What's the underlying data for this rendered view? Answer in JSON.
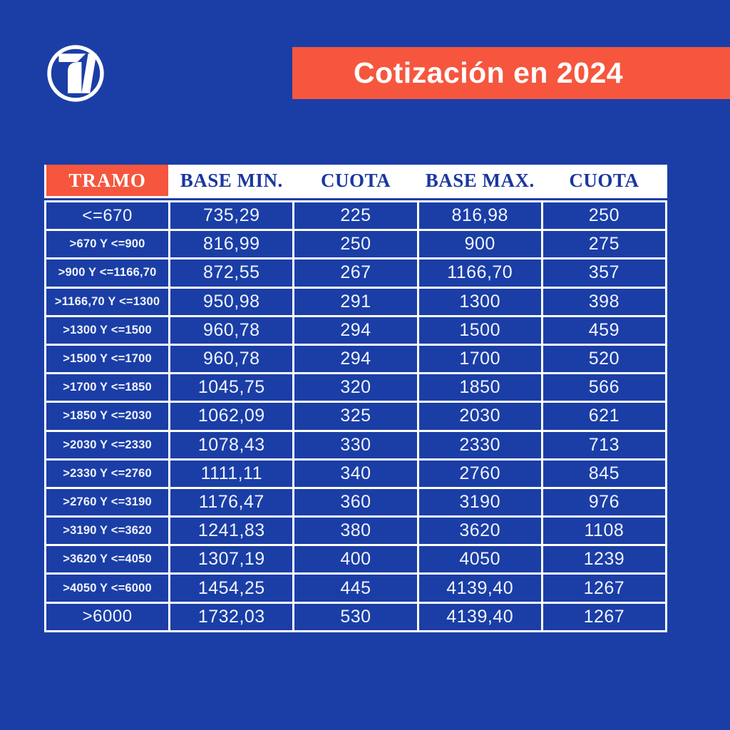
{
  "colors": {
    "background": "#1B3EA6",
    "accent": "#F6563E",
    "header_text": "#19379F",
    "cell_text": "#F0F4FF"
  },
  "icons": {
    "logo": "circle-seven-logo-icon"
  },
  "banner": {
    "title": "Cotización en 2024"
  },
  "chart_data": {
    "type": "table",
    "title": "Cotización en 2024",
    "columns": [
      "TRAMO",
      "BASE MIN.",
      "CUOTA",
      "BASE MAX.",
      "CUOTA"
    ],
    "rows": [
      [
        "<=670",
        "735,29",
        "225",
        "816,98",
        "250"
      ],
      [
        ">670 Y <=900",
        "816,99",
        "250",
        "900",
        "275"
      ],
      [
        ">900 Y <=1166,70",
        "872,55",
        "267",
        "1166,70",
        "357"
      ],
      [
        ">1166,70 Y <=1300",
        "950,98",
        "291",
        "1300",
        "398"
      ],
      [
        ">1300 Y <=1500",
        "960,78",
        "294",
        "1500",
        "459"
      ],
      [
        ">1500 Y <=1700",
        "960,78",
        "294",
        "1700",
        "520"
      ],
      [
        ">1700 Y <=1850",
        "1045,75",
        "320",
        "1850",
        "566"
      ],
      [
        ">1850 Y <=2030",
        "1062,09",
        "325",
        "2030",
        "621"
      ],
      [
        ">2030 Y <=2330",
        "1078,43",
        "330",
        "2330",
        "713"
      ],
      [
        ">2330 Y <=2760",
        "1111,11",
        "340",
        "2760",
        "845"
      ],
      [
        ">2760 Y <=3190",
        "1176,47",
        "360",
        "3190",
        "976"
      ],
      [
        ">3190 Y <=3620",
        "1241,83",
        "380",
        "3620",
        "1108"
      ],
      [
        ">3620 Y <=4050",
        "1307,19",
        "400",
        "4050",
        "1239"
      ],
      [
        ">4050 Y <=6000",
        "1454,25",
        "445",
        "4139,40",
        "1267"
      ],
      [
        ">6000",
        "1732,03",
        "530",
        "4139,40",
        "1267"
      ]
    ]
  }
}
